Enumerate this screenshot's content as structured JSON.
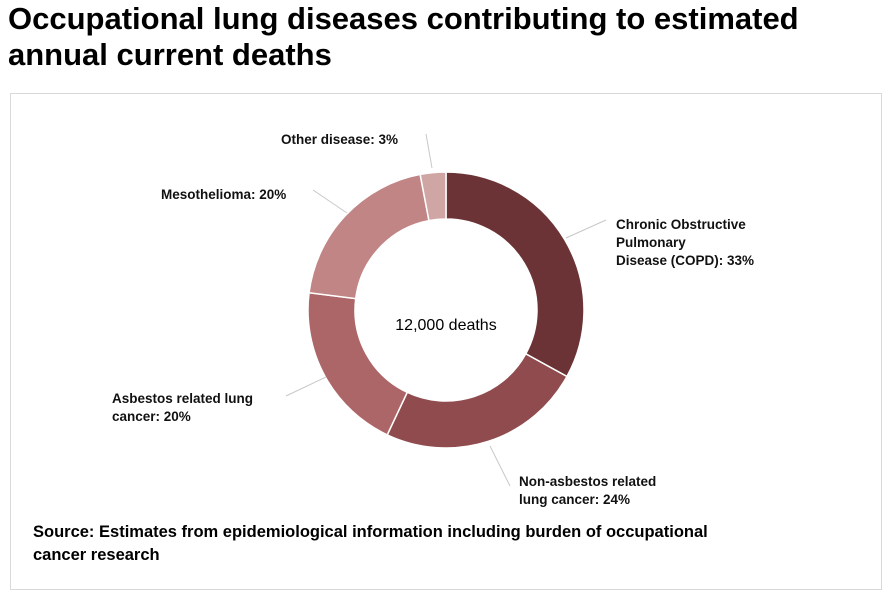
{
  "page": {
    "title": "Occupational lung diseases contributing to estimated annual current deaths",
    "source": "Source: Estimates from epidemiological information including burden of occupational cancer research"
  },
  "chart_data": {
    "type": "pie",
    "style": "donut",
    "center_label": "12,000 deaths",
    "legend": "none",
    "slices": [
      {
        "name": "Chronic Obstructive Pulmonary Disease (COPD)",
        "label_lines": [
          "Chronic Obstructive",
          "Pulmonary",
          "Disease (COPD): 33%"
        ],
        "value": 33,
        "color": "#6b3336"
      },
      {
        "name": "Non-asbestos related lung cancer",
        "label_lines": [
          "Non-asbestos related",
          "lung cancer: 24%"
        ],
        "value": 24,
        "color": "#8f4b4d"
      },
      {
        "name": "Asbestos related lung cancer",
        "label_lines": [
          "Asbestos related lung",
          "cancer: 20%"
        ],
        "value": 20,
        "color": "#ad6667"
      },
      {
        "name": "Mesothelioma",
        "label_lines": [
          "Mesothelioma: 20%"
        ],
        "value": 20,
        "color": "#c08584"
      },
      {
        "name": "Other disease",
        "label_lines": [
          "Other disease: 3%"
        ],
        "value": 3,
        "color": "#d0a6a5"
      }
    ]
  }
}
